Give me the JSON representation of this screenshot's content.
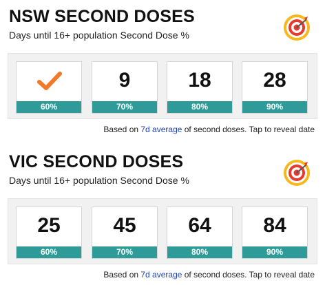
{
  "sections": [
    {
      "title": "NSW SECOND DOSES",
      "subtitle": "Days until 16+ population Second Dose %",
      "icon": "target-icon",
      "cards": [
        {
          "value": "",
          "icon": "checkmark-icon",
          "percent": "60%"
        },
        {
          "value": "9",
          "percent": "70%"
        },
        {
          "value": "18",
          "percent": "80%"
        },
        {
          "value": "28",
          "percent": "90%"
        }
      ],
      "note": {
        "prefix": "Based on ",
        "link": "7d average",
        "suffix": " of second doses. Tap to reveal date"
      }
    },
    {
      "title": "VIC SECOND DOSES",
      "subtitle": "Days until 16+ population Second Dose %",
      "icon": "target-icon",
      "cards": [
        {
          "value": "25",
          "percent": "60%"
        },
        {
          "value": "45",
          "percent": "70%"
        },
        {
          "value": "64",
          "percent": "80%"
        },
        {
          "value": "84",
          "percent": "90%"
        }
      ],
      "note": {
        "prefix": "Based on ",
        "link": "7d average",
        "suffix": " of second doses. Tap to reveal date"
      }
    }
  ],
  "colors": {
    "accent_teal": "#2f9b98",
    "check_orange": "#f07a2a",
    "link_blue": "#1f3fb3",
    "target_red": "#e63b2e",
    "target_yellow": "#f6b81c"
  }
}
